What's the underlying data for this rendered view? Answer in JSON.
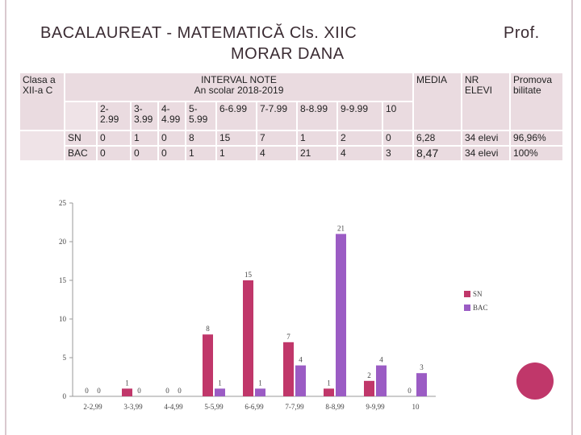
{
  "slide": {
    "title_line1": "BACALAUREAT  -  MATEMATICĂ   Cls. XIIC",
    "title_line2": "MORAR DANA",
    "prof": "Prof.",
    "accent_color": "#c0376a"
  },
  "table": {
    "class_label": "Clasa a XII-a C",
    "interval_label": "INTERVAL NOTE",
    "year_label": "An scolar 2018-2019",
    "media_label": "MEDIA",
    "nr_elevi_label": "NR ELEVI",
    "promovabilitate_label": "Promova bilitate",
    "intervals": [
      "2-2.99",
      "3-3.99",
      "4-4.99",
      "5-5.99",
      "6-6.99",
      "7-7.99",
      "8-8.99",
      "9-9.99",
      "10"
    ],
    "rows": [
      {
        "name": "SN",
        "values": [
          "0",
          "1",
          "0",
          "8",
          "15",
          "7",
          "1",
          "2",
          "0"
        ],
        "media": "6,28",
        "nr_elevi": "34 elevi",
        "promovabilitate": "96,96%"
      },
      {
        "name": "BAC",
        "values": [
          "0",
          "0",
          "0",
          "1",
          "1",
          "4",
          "21",
          "4",
          "3"
        ],
        "media": "8,47",
        "nr_elevi": "34 elevi",
        "promovabilitate": "100%"
      }
    ]
  },
  "chart_data": {
    "type": "bar",
    "categories": [
      "2-2,99",
      "3-3,99",
      "4-4,99",
      "5-5,99",
      "6-6,99",
      "7-7,99",
      "8-8,99",
      "9-9,99",
      "10"
    ],
    "series": [
      {
        "name": "SN",
        "values": [
          0,
          1,
          0,
          8,
          15,
          7,
          1,
          2,
          0
        ],
        "color": "#c0376a"
      },
      {
        "name": "BAC",
        "values": [
          0,
          0,
          0,
          1,
          1,
          4,
          21,
          4,
          3
        ],
        "color": "#9b5cc4"
      }
    ],
    "yticks": [
      0,
      5,
      10,
      15,
      20,
      25
    ],
    "ylim": [
      0,
      25
    ],
    "legend": "right",
    "grid": false
  }
}
